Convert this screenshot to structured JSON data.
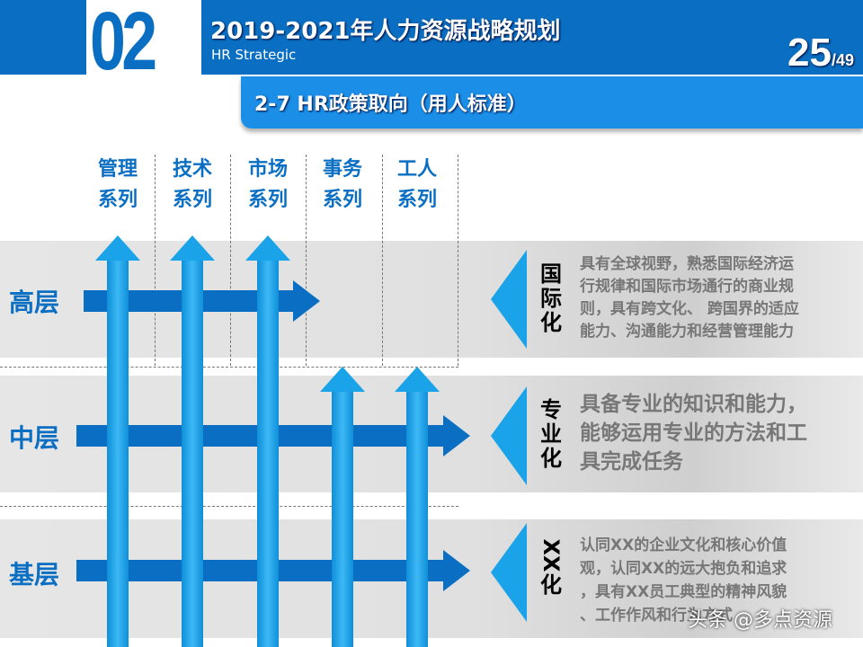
{
  "header": {
    "section_number": "02",
    "title": "2019-2021年人力资源战略规划",
    "subtitle": "HR Strategic",
    "page_current": "25",
    "page_total": "/49"
  },
  "section_title": "2-7 HR政策取向（用人标准）",
  "columns": [
    [
      "管理",
      "系列"
    ],
    [
      "技术",
      "系列"
    ],
    [
      "市场",
      "系列"
    ],
    [
      "事务",
      "系列"
    ],
    [
      "工人",
      "系列"
    ]
  ],
  "rows": [
    {
      "label": "高层",
      "tag": [
        "国",
        "际",
        "化"
      ],
      "desc": [
        "具有全球视野，熟悉国际经济运",
        "行规律和国际市场通行的商业规",
        "则，具有跨文化、 跨国界的适应",
        "能力、沟通能力和经营管理能力"
      ]
    },
    {
      "label": "中层",
      "tag": [
        "专",
        "业",
        "化"
      ],
      "desc": [
        "具备专业的知识和能力，",
        "能够运用专业的方法和工",
        "具完成任务"
      ]
    },
    {
      "label": "基层",
      "tag": [
        "XX",
        "化"
      ],
      "desc": [
        "认同XX的企业文化和核心价值",
        "观，认同XX的远大抱负和追求",
        "，具有XX员工典型的精神风貌",
        "、工作作风和行为方式"
      ]
    }
  ],
  "watermark": "头条 @多点资源",
  "colors": {
    "primary": "#0a6fc2",
    "accent": "#1aa3e8",
    "arrow_dark": "#0a6fc2"
  }
}
